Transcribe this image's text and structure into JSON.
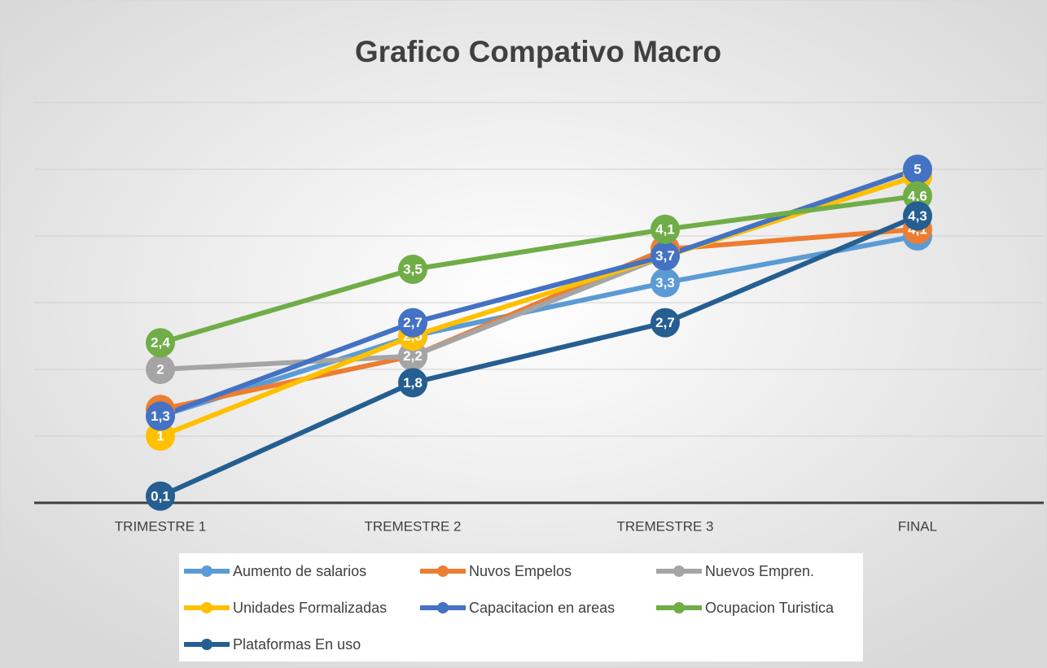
{
  "chart_data": {
    "type": "line",
    "title": "Grafico Compativo Macro",
    "categories": [
      "TRIMESTRE 1",
      "TREMESTRE 2",
      "TREMESTRE 3",
      "FINAL"
    ],
    "ylim": [
      0,
      6
    ],
    "yticks": [
      0,
      1,
      2,
      3,
      4,
      5,
      6
    ],
    "grid": true,
    "series": [
      {
        "name": "Aumento de salarios",
        "color": "#5b9bd5",
        "values": [
          1.3,
          2.5,
          3.3,
          4
        ],
        "value_labels": [
          "1,3",
          "2,5",
          "3,3",
          "4"
        ]
      },
      {
        "name": "Nuvos Empelos",
        "color": "#ed7d31",
        "values": [
          1.4,
          2.2,
          3.8,
          4.1
        ],
        "value_labels": [
          "1,4",
          "2,2",
          "3,8",
          "4,1"
        ]
      },
      {
        "name": "Nuevos Empren.",
        "color": "#a5a5a5",
        "values": [
          2,
          2.2,
          3.7,
          4.9
        ],
        "value_labels": [
          "2",
          "2,2",
          "3,7",
          "4,9"
        ]
      },
      {
        "name": "Unidades Formalizadas",
        "color": "#ffc000",
        "values": [
          1,
          2.5,
          3.7,
          4.9
        ],
        "value_labels": [
          "1",
          "2,5",
          "3,7",
          "4,9"
        ]
      },
      {
        "name": "Capacitacion en areas",
        "color": "#4472c4",
        "values": [
          1.3,
          2.7,
          3.7,
          5
        ],
        "value_labels": [
          "1,3",
          "2,7",
          "3,7",
          "5"
        ]
      },
      {
        "name": "Ocupacion Turistica",
        "color": "#70ad47",
        "values": [
          2.4,
          3.5,
          4.1,
          4.6
        ],
        "value_labels": [
          "2,4",
          "3,5",
          "4,1",
          "4,6"
        ]
      },
      {
        "name": "Plataformas En uso",
        "color": "#255e91",
        "values": [
          0.1,
          1.8,
          2.7,
          4.3
        ],
        "value_labels": [
          "0,1",
          "1,8",
          "2,7",
          "4,3"
        ]
      }
    ]
  }
}
